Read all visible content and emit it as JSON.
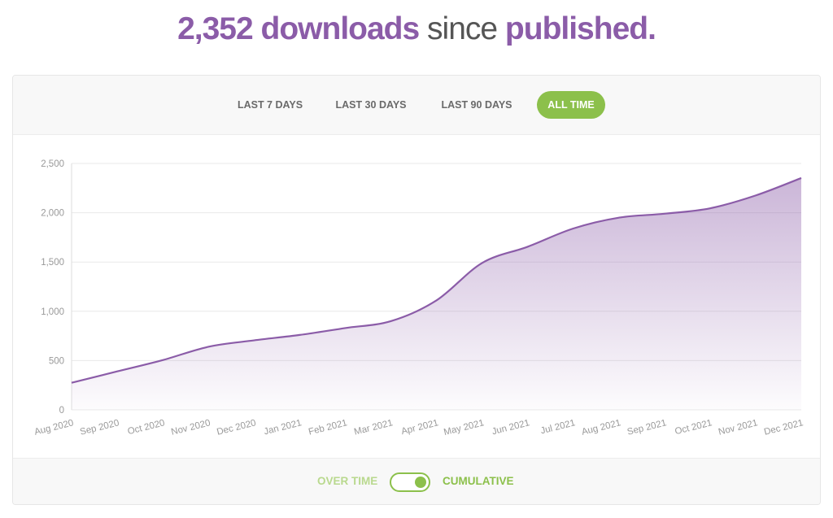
{
  "headline": {
    "count": "2,352",
    "downloads_word": "downloads",
    "since_word": "since",
    "published_word": "published."
  },
  "tabs": [
    {
      "label": "LAST 7 DAYS",
      "active": false
    },
    {
      "label": "LAST 30 DAYS",
      "active": false
    },
    {
      "label": "LAST 90 DAYS",
      "active": false
    },
    {
      "label": "ALL TIME",
      "active": true
    }
  ],
  "toggle": {
    "left_label": "OVER TIME",
    "right_label": "CUMULATIVE",
    "state": "cumulative"
  },
  "colors": {
    "accent_purple": "#8b5ca8",
    "accent_green": "#8cc04b",
    "light_green": "#b9d98e",
    "headline_gray": "#555555",
    "grid": "#e9e9e9",
    "tick": "#999999"
  },
  "chart_data": {
    "type": "area",
    "x": [
      "Aug 2020",
      "Sep 2020",
      "Oct 2020",
      "Nov 2020",
      "Dec 2020",
      "Jan 2021",
      "Feb 2021",
      "Mar 2021",
      "Apr 2021",
      "May 2021",
      "Jun 2021",
      "Jul 2021",
      "Aug 2021",
      "Sep 2021",
      "Oct 2021",
      "Nov 2021",
      "Dec 2021"
    ],
    "series": [
      {
        "values": [
          275,
          390,
          505,
          640,
          705,
          760,
          830,
          900,
          1110,
          1490,
          1655,
          1840,
          1950,
          1990,
          2045,
          2175,
          2352
        ]
      }
    ],
    "ylim": [
      0,
      2500
    ],
    "yticks": [
      0,
      500,
      1000,
      1500,
      2000,
      2500
    ],
    "ytick_labels": [
      "0",
      "500",
      "1,000",
      "1,500",
      "2,000",
      "2,500"
    ],
    "grid": true,
    "legend": "none"
  }
}
